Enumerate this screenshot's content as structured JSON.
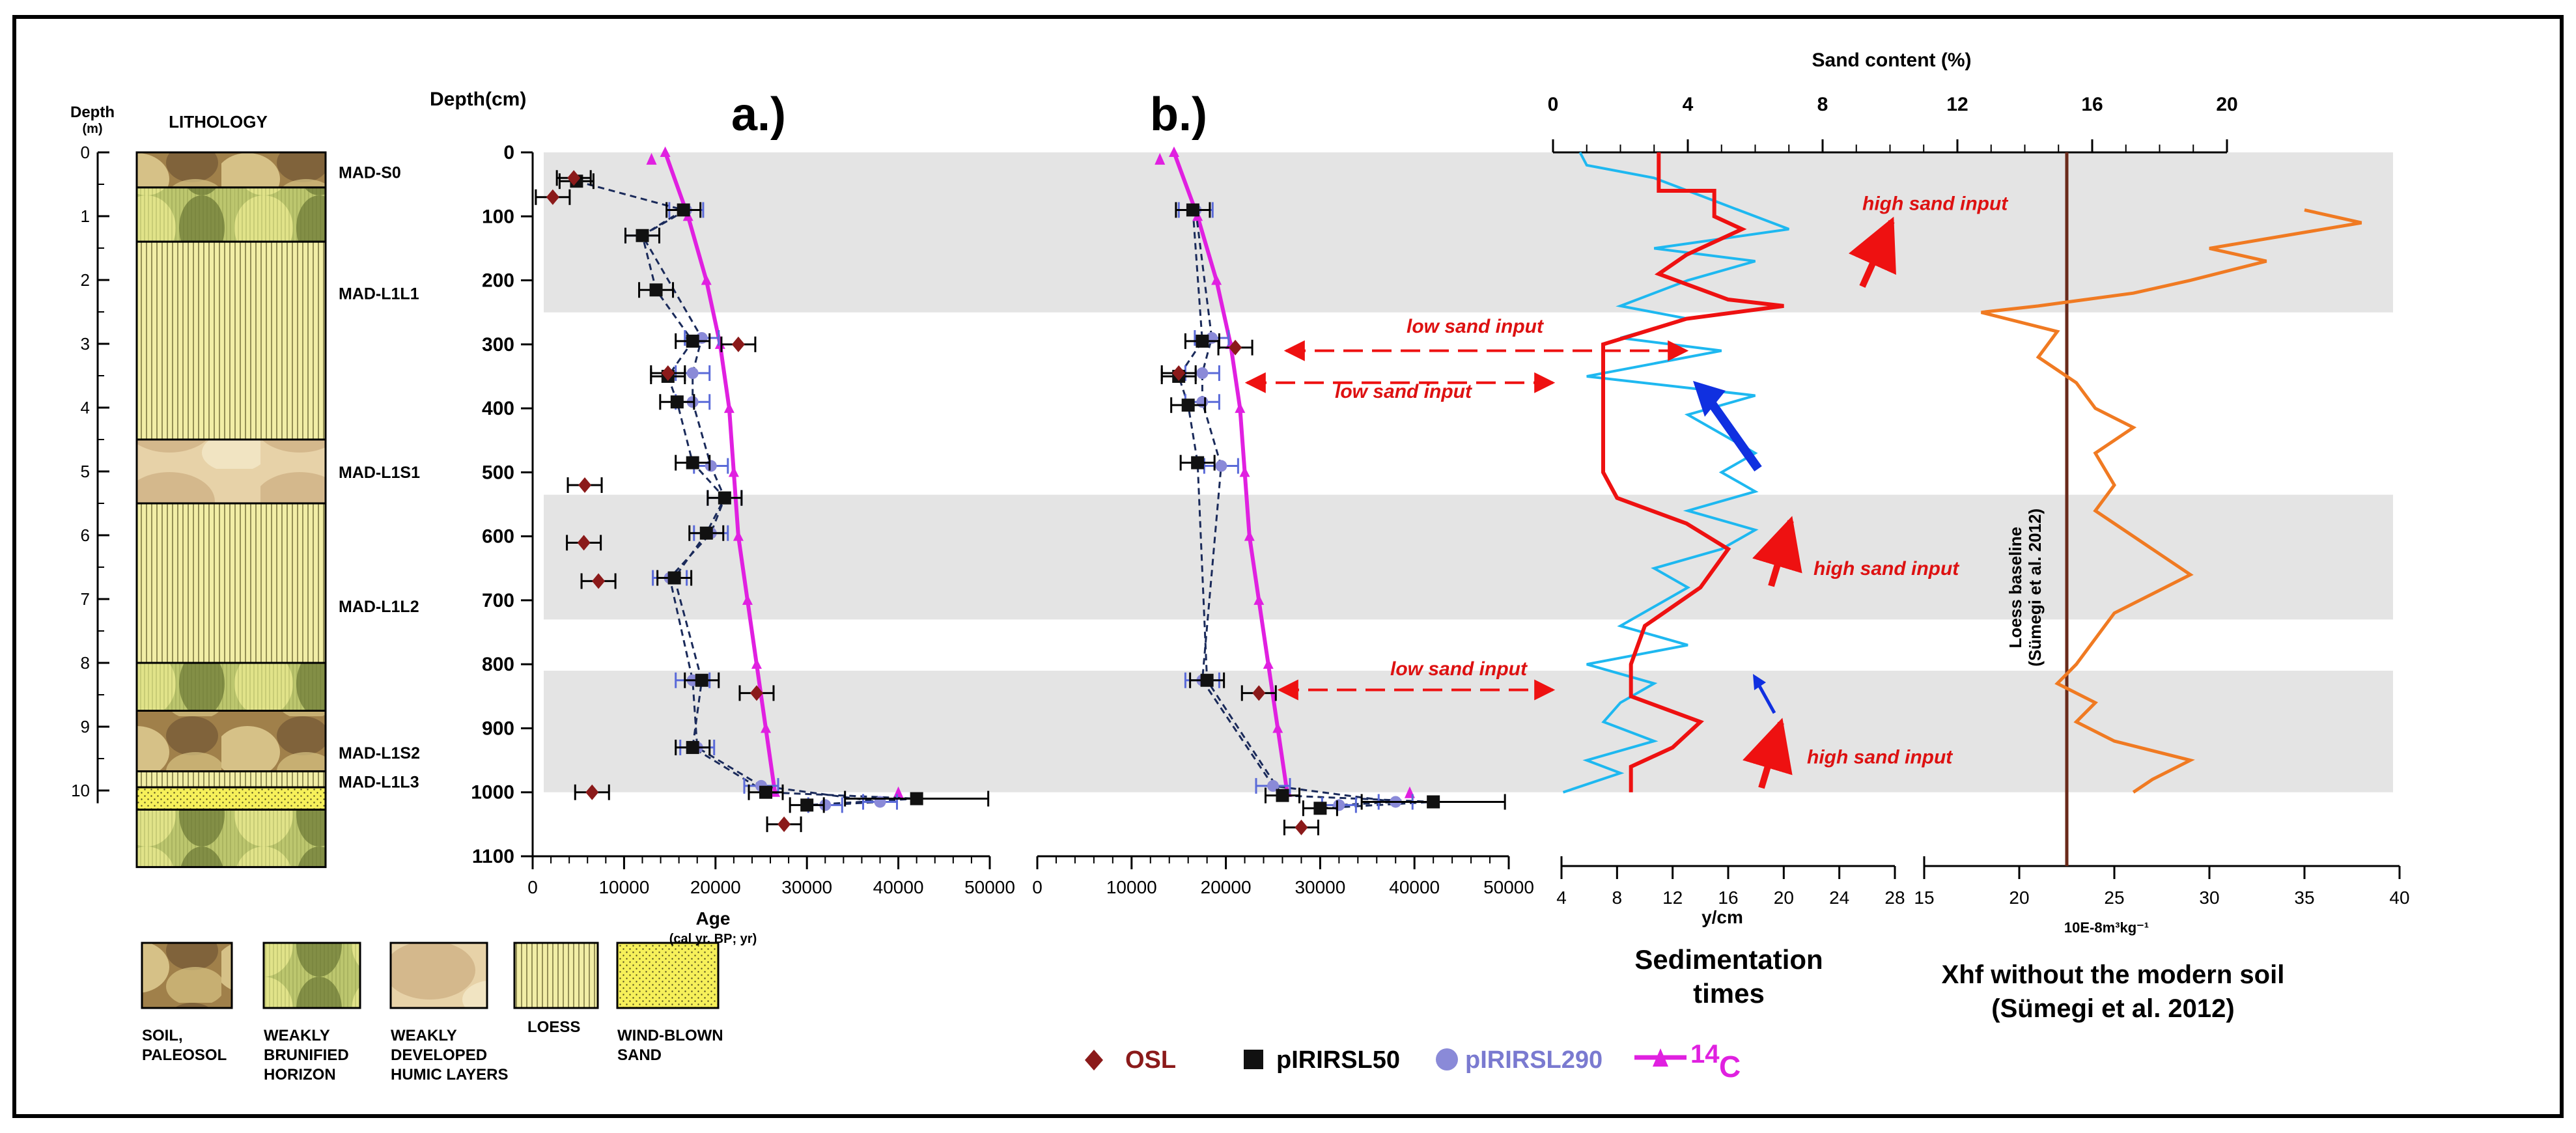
{
  "chart_data": [
    {
      "id": "lithology",
      "type": "table",
      "depth_unit": "Depth",
      "depth_unit2": "(m)",
      "title": "LITHOLOGY",
      "ticks": [
        0,
        1,
        2,
        3,
        4,
        5,
        6,
        7,
        8,
        9,
        10
      ],
      "ylim": [
        0,
        11.2
      ],
      "units": [
        {
          "label": "MAD-S0",
          "label_depth": 0.3,
          "from": 0,
          "to": 0.55,
          "kind": "soil"
        },
        {
          "label": "",
          "label_depth": null,
          "from": 0.55,
          "to": 1.4,
          "kind": "brunified"
        },
        {
          "label": "MAD-L1L1",
          "label_depth": 2.2,
          "from": 1.4,
          "to": 4.5,
          "kind": "loess"
        },
        {
          "label": "MAD-L1S1",
          "label_depth": 5.0,
          "from": 4.5,
          "to": 5.5,
          "kind": "humic"
        },
        {
          "label": "MAD-L1L2",
          "label_depth": 7.1,
          "from": 5.5,
          "to": 8.0,
          "kind": "loess"
        },
        {
          "label": "",
          "label_depth": null,
          "from": 8.0,
          "to": 8.75,
          "kind": "brunified"
        },
        {
          "label": "MAD-L1S2",
          "label_depth": 9.4,
          "from": 8.75,
          "to": 9.7,
          "kind": "soil"
        },
        {
          "label": "MAD-L1L3",
          "label_depth": 9.85,
          "from": 9.7,
          "to": 9.95,
          "kind": "loess"
        },
        {
          "label": "",
          "label_depth": null,
          "from": 9.95,
          "to": 10.3,
          "kind": "sand"
        },
        {
          "label": "",
          "label_depth": null,
          "from": 10.3,
          "to": 11.2,
          "kind": "brunified"
        }
      ]
    },
    {
      "id": "age_depth",
      "type": "scatter",
      "depth_label": "Depth(cm)",
      "panel_labels": [
        "a.)",
        "b.)"
      ],
      "xlabel": "Age",
      "xlabel_sub": "(cal yr. BP; yr)",
      "xlim": [
        0,
        50000
      ],
      "ylim": [
        0,
        1100
      ],
      "xticks": [
        0,
        10000,
        20000,
        30000,
        40000,
        50000
      ],
      "yticks": [
        0,
        100,
        200,
        300,
        400,
        500,
        600,
        700,
        800,
        900,
        1000,
        1100
      ],
      "series_a": {
        "osl": [
          [
            4500,
            40
          ],
          [
            2200,
            70
          ],
          [
            22500,
            300
          ],
          [
            14800,
            345
          ],
          [
            5700,
            520
          ],
          [
            5600,
            610
          ],
          [
            7200,
            670
          ],
          [
            24500,
            845
          ],
          [
            6500,
            1000
          ],
          [
            27500,
            1050
          ]
        ],
        "ir50": [
          [
            4800,
            45
          ],
          [
            16500,
            90
          ],
          [
            12000,
            130
          ],
          [
            13500,
            215
          ],
          [
            17500,
            295
          ],
          [
            14800,
            350
          ],
          [
            15800,
            390
          ],
          [
            17500,
            485
          ],
          [
            21000,
            540
          ],
          [
            19000,
            595
          ],
          [
            15500,
            665
          ],
          [
            18500,
            825
          ],
          [
            17500,
            930
          ],
          [
            25500,
            1000
          ],
          [
            30000,
            1020
          ],
          [
            42000,
            1010
          ]
        ],
        "ir290": [
          [
            16800,
            90
          ],
          [
            12000,
            130
          ],
          [
            18500,
            290
          ],
          [
            17500,
            345
          ],
          [
            17500,
            390
          ],
          [
            19500,
            490
          ],
          [
            21000,
            540
          ],
          [
            19500,
            595
          ],
          [
            15000,
            665
          ],
          [
            17500,
            825
          ],
          [
            18000,
            930
          ],
          [
            25000,
            990
          ],
          [
            32000,
            1020
          ],
          [
            38000,
            1015
          ]
        ],
        "c14": [
          [
            13000,
            10
          ],
          [
            40000,
            1000
          ]
        ],
        "c14_line": [
          [
            14500,
            0
          ],
          [
            17000,
            100
          ],
          [
            19000,
            200
          ],
          [
            20500,
            300
          ],
          [
            21500,
            400
          ],
          [
            22000,
            500
          ],
          [
            22500,
            600
          ],
          [
            23500,
            700
          ],
          [
            24500,
            800
          ],
          [
            25500,
            900
          ],
          [
            26500,
            1000
          ]
        ]
      },
      "series_b": {
        "osl": [
          [
            21000,
            305
          ],
          [
            15000,
            345
          ],
          [
            23500,
            845
          ],
          [
            28000,
            1055
          ]
        ],
        "ir50": [
          [
            16500,
            90
          ],
          [
            17500,
            295
          ],
          [
            15000,
            350
          ],
          [
            16000,
            395
          ],
          [
            17000,
            485
          ],
          [
            18000,
            825
          ],
          [
            26000,
            1005
          ],
          [
            30000,
            1025
          ],
          [
            42000,
            1015
          ]
        ],
        "ir290": [
          [
            16800,
            90
          ],
          [
            18500,
            290
          ],
          [
            17500,
            345
          ],
          [
            17500,
            390
          ],
          [
            19500,
            490
          ],
          [
            17500,
            825
          ],
          [
            25000,
            990
          ],
          [
            32000,
            1020
          ],
          [
            38000,
            1015
          ]
        ],
        "c14": [
          [
            13000,
            10
          ],
          [
            39500,
            1000
          ]
        ],
        "c14_line": [
          [
            14500,
            0
          ],
          [
            17000,
            100
          ],
          [
            19000,
            200
          ],
          [
            20500,
            300
          ],
          [
            21500,
            400
          ],
          [
            22000,
            500
          ],
          [
            22500,
            600
          ],
          [
            23500,
            700
          ],
          [
            24500,
            800
          ],
          [
            25500,
            900
          ],
          [
            26500,
            1000
          ]
        ]
      },
      "legend": [
        "OSL",
        "pIRIRSL50",
        "pIRIRSL290",
        "14",
        "C"
      ],
      "annotations": [
        {
          "text": "low sand input",
          "depth": 290,
          "where": "upper"
        },
        {
          "text": "low sand input",
          "depth": 345,
          "where": "lower"
        },
        {
          "text": "low sand input",
          "depth": 805,
          "where": "lower"
        }
      ]
    },
    {
      "id": "sand_sed",
      "type": "line",
      "title": "Sand content (%)",
      "sand_xlim": [
        0,
        20
      ],
      "sand_ticks": [
        0,
        4,
        8,
        12,
        16,
        20
      ],
      "sed_xlim": [
        4,
        28
      ],
      "sed_ticks": [
        4,
        8,
        12,
        16,
        20,
        24,
        28
      ],
      "sed_unit": "y/cm",
      "sed_title": [
        "Sedimentation",
        "times"
      ],
      "ylim": [
        0,
        1100
      ],
      "sand_profile": [
        [
          0.8,
          0
        ],
        [
          1,
          20
        ],
        [
          3,
          40
        ],
        [
          5,
          80
        ],
        [
          7,
          120
        ],
        [
          3,
          150
        ],
        [
          6,
          170
        ],
        [
          4,
          200
        ],
        [
          2,
          240
        ],
        [
          4,
          260
        ],
        [
          2,
          290
        ],
        [
          5,
          310
        ],
        [
          3,
          330
        ],
        [
          1,
          350
        ],
        [
          6,
          380
        ],
        [
          4,
          410
        ],
        [
          5,
          440
        ],
        [
          6,
          470
        ],
        [
          5,
          500
        ],
        [
          6,
          530
        ],
        [
          4,
          560
        ],
        [
          6,
          590
        ],
        [
          5,
          620
        ],
        [
          3,
          650
        ],
        [
          4,
          680
        ],
        [
          3,
          710
        ],
        [
          2,
          740
        ],
        [
          4,
          770
        ],
        [
          1,
          800
        ],
        [
          3,
          830
        ],
        [
          2,
          860
        ],
        [
          1.5,
          890
        ],
        [
          3,
          920
        ],
        [
          1,
          950
        ],
        [
          2,
          970
        ],
        [
          0.3,
          1000
        ]
      ],
      "sed_profile": [
        [
          11,
          0
        ],
        [
          11,
          60
        ],
        [
          15,
          60
        ],
        [
          15,
          100
        ],
        [
          17,
          120
        ],
        [
          13,
          160
        ],
        [
          11,
          190
        ],
        [
          16,
          230
        ],
        [
          20,
          240
        ],
        [
          13,
          260
        ],
        [
          10,
          280
        ],
        [
          7,
          300
        ],
        [
          7,
          500
        ],
        [
          8,
          540
        ],
        [
          13,
          580
        ],
        [
          16,
          620
        ],
        [
          14,
          680
        ],
        [
          10,
          740
        ],
        [
          9,
          800
        ],
        [
          9,
          850
        ],
        [
          14,
          890
        ],
        [
          12,
          930
        ],
        [
          9,
          960
        ],
        [
          9,
          1000
        ]
      ],
      "bands": [
        [
          0,
          250
        ],
        [
          535,
          730
        ],
        [
          810,
          1000
        ]
      ],
      "annotations": [
        {
          "text": "high sand input",
          "depth": 80
        },
        {
          "text": "low sand input",
          "depth": 290
        },
        {
          "text": "high sand input",
          "depth": 650
        },
        {
          "text": "high sand input",
          "depth": 945
        }
      ]
    },
    {
      "id": "xhf",
      "type": "line",
      "xlim": [
        15,
        40
      ],
      "xticks": [
        15,
        20,
        25,
        30,
        35,
        40
      ],
      "xunit": "10E-8m³kg⁻¹",
      "title": [
        "Xhf without the modern soil",
        "(Sümegi et al. 2012)"
      ],
      "baseline_value": 22.5,
      "baseline_label": "Loess baseline",
      "baseline_label2": "(Sümegi et al. 2012)",
      "profile": [
        [
          35,
          90
        ],
        [
          38,
          110
        ],
        [
          34,
          130
        ],
        [
          30,
          150
        ],
        [
          33,
          170
        ],
        [
          29,
          200
        ],
        [
          26,
          220
        ],
        [
          21,
          240
        ],
        [
          18,
          250
        ],
        [
          22,
          280
        ],
        [
          21,
          320
        ],
        [
          23,
          360
        ],
        [
          24,
          400
        ],
        [
          26,
          430
        ],
        [
          24,
          470
        ],
        [
          25,
          520
        ],
        [
          24,
          560
        ],
        [
          26,
          600
        ],
        [
          28,
          640
        ],
        [
          29,
          660
        ],
        [
          27,
          690
        ],
        [
          25,
          720
        ],
        [
          24,
          760
        ],
        [
          23,
          800
        ],
        [
          22,
          830
        ],
        [
          24,
          860
        ],
        [
          23,
          890
        ],
        [
          25,
          920
        ],
        [
          29,
          950
        ],
        [
          27,
          980
        ],
        [
          26,
          1000
        ]
      ]
    }
  ],
  "legend_lithology": [
    {
      "kind": "soil",
      "label1": "SOIL,",
      "label2": "PALEOSOL",
      "label3": ""
    },
    {
      "kind": "brunified",
      "label1": "WEAKLY",
      "label2": "BRUNIFIED",
      "label3": "HORIZON"
    },
    {
      "kind": "humic",
      "label1": "WEAKLY",
      "label2": "DEVELOPED",
      "label3": "HUMIC LAYERS"
    },
    {
      "kind": "loess",
      "label1": "LOESS",
      "label2": "",
      "label3": ""
    },
    {
      "kind": "sand",
      "label1": "WIND-BLOWN",
      "label2": "SAND",
      "label3": ""
    }
  ],
  "colors": {
    "osl": "#8b1a1a",
    "ir50": "#111111",
    "ir290": "#8a8ad8",
    "c14": "#e020e0",
    "sand": "#1eb8f0",
    "sed": "#ee1111",
    "xhf": "#f07a22",
    "band": "#e4e4e4",
    "baseline": "#6a2a1a",
    "arrow_red": "#ee1111",
    "arrow_blue": "#1030e0",
    "annot": "#dd1111"
  }
}
